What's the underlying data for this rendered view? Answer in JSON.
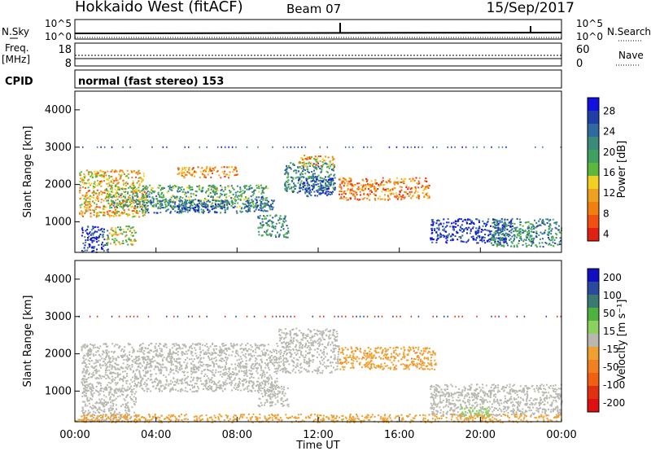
{
  "header": {
    "station": "Hokkaido West (fitACF)",
    "beam": "Beam 07",
    "date": "15/Sep/2017"
  },
  "status_panel": {
    "left_labels": {
      "nsky": "N.Sky",
      "freq": "Freq.",
      "freq_unit": "[MHz]",
      "cpid": "CPID"
    },
    "right_labels": {
      "nsearch": "N.Search",
      "nave": "Nave"
    },
    "noise_ticks_left": [
      "10^5",
      "10^0"
    ],
    "noise_ticks_right": [
      "10^5",
      "10^0"
    ],
    "freq_ticks": [
      "18",
      "8"
    ],
    "nave_ticks": [
      "60",
      "0"
    ],
    "cpid_text": "normal (fast stereo) 153"
  },
  "colors": {
    "power_scale": [
      "#1010e0",
      "#2040a8",
      "#306aa0",
      "#3c8a7a",
      "#40a060",
      "#5cb83c",
      "#f0d020",
      "#f0a020",
      "#f08010",
      "#f05010",
      "#e02010"
    ],
    "velocity_scale": [
      "#1010c0",
      "#2a4aa0",
      "#3a7a70",
      "#50b040",
      "#8cd060",
      "#b8b8b0",
      "#f0a030",
      "#f08020",
      "#f06010",
      "#e03010",
      "#e01010"
    ],
    "ground_scatter": "#b8b8b0"
  },
  "chart_data": [
    {
      "type": "heatmap",
      "name": "power",
      "ylabel": "Slant Range [km]",
      "xlabel": "Time UT",
      "y_ticks": [
        "4000",
        "3000",
        "2000",
        "1000"
      ],
      "x_ticks": [
        "00:00",
        "04:00",
        "08:00",
        "12:00",
        "16:00",
        "20:00",
        "00:00"
      ],
      "ylim": [
        180,
        4500
      ],
      "xlim_hours": [
        0,
        24
      ],
      "colorbar": {
        "label": "Power [dB]",
        "ticks": [
          "28",
          "24",
          "20",
          "16",
          "12",
          "8",
          "4"
        ],
        "range": [
          0,
          30
        ]
      },
      "regions": [
        {
          "t0": 0.2,
          "t1": 3.5,
          "r0": 1150,
          "r1": 2400,
          "level": 10
        },
        {
          "t0": 1.5,
          "t1": 9.5,
          "r0": 1400,
          "r1": 2000,
          "level": 18
        },
        {
          "t0": 3.0,
          "t1": 9.0,
          "r0": 1250,
          "r1": 1600,
          "level": 22
        },
        {
          "t0": 5.0,
          "t1": 7.0,
          "r0": 1300,
          "r1": 1450,
          "level": 26
        },
        {
          "t0": 0.3,
          "t1": 1.6,
          "r0": 200,
          "r1": 900,
          "level": 26
        },
        {
          "t0": 1.5,
          "t1": 3.0,
          "r0": 400,
          "r1": 900,
          "level": 14
        },
        {
          "t0": 8.8,
          "t1": 9.8,
          "r0": 1300,
          "r1": 1700,
          "level": 24
        },
        {
          "t0": 9.0,
          "t1": 10.5,
          "r0": 600,
          "r1": 1200,
          "level": 20
        },
        {
          "t0": 10.3,
          "t1": 12.8,
          "r0": 1800,
          "r1": 2600,
          "level": 20
        },
        {
          "t0": 11.0,
          "t1": 12.8,
          "r0": 1700,
          "r1": 2200,
          "level": 26
        },
        {
          "t0": 11.0,
          "t1": 12.8,
          "r0": 2500,
          "r1": 2800,
          "level": 10
        },
        {
          "t0": 13.0,
          "t1": 17.5,
          "r0": 1600,
          "r1": 2200,
          "level": 7
        },
        {
          "t0": 17.5,
          "t1": 21.5,
          "r0": 450,
          "r1": 1100,
          "level": 27
        },
        {
          "t0": 20.5,
          "t1": 24.0,
          "r0": 350,
          "r1": 1100,
          "level": 20
        },
        {
          "t0": 5.0,
          "t1": 8.0,
          "r0": 2200,
          "r1": 2500,
          "level": 8
        }
      ]
    },
    {
      "type": "heatmap",
      "name": "velocity",
      "ylabel": "Slant Range [km]",
      "xlabel": "Time UT",
      "y_ticks": [
        "4000",
        "3000",
        "2000",
        "1000"
      ],
      "x_ticks": [
        "00:00",
        "04:00",
        "08:00",
        "12:00",
        "16:00",
        "20:00",
        "00:00"
      ],
      "ylim": [
        180,
        4500
      ],
      "xlim_hours": [
        0,
        24
      ],
      "colorbar": {
        "label": "Velocity [m s⁻¹]",
        "ticks": [
          "200",
          "100",
          "50",
          "15",
          "-15",
          "-50",
          "-100",
          "-200"
        ],
        "range": [
          -250,
          250
        ]
      },
      "regions": [
        {
          "t0": 0.3,
          "t1": 10.0,
          "r0": 1000,
          "r1": 2300,
          "level": 0
        },
        {
          "t0": 0.3,
          "t1": 3.0,
          "r0": 200,
          "r1": 1100,
          "level": 0
        },
        {
          "t0": 10.0,
          "t1": 13.0,
          "r0": 1500,
          "r1": 2700,
          "level": 0
        },
        {
          "t0": 9.0,
          "t1": 10.5,
          "r0": 600,
          "r1": 1200,
          "level": 0
        },
        {
          "t0": 13.0,
          "t1": 17.8,
          "r0": 1600,
          "r1": 2200,
          "level": -60
        },
        {
          "t0": 17.5,
          "t1": 24.0,
          "r0": 350,
          "r1": 1200,
          "level": 0
        },
        {
          "t0": 19.0,
          "t1": 20.5,
          "r0": 300,
          "r1": 600,
          "level": 40
        },
        {
          "t0": 0.0,
          "t1": 24.0,
          "r0": 180,
          "r1": 400,
          "level": -40
        }
      ]
    }
  ]
}
